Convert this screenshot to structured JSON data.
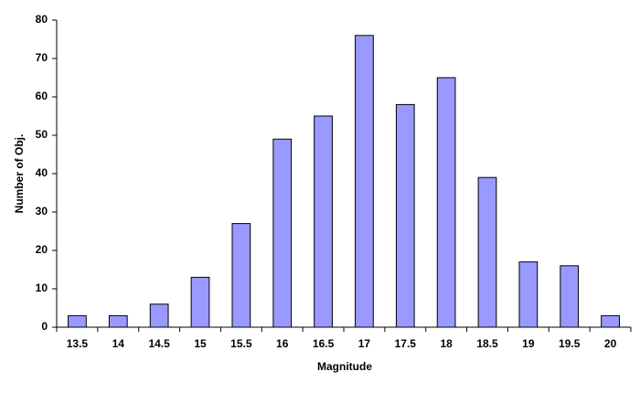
{
  "chart_data": {
    "type": "bar",
    "x_label": "Magnitude",
    "y_label": "Number of Obj.",
    "categories": [
      "13.5",
      "14",
      "14.5",
      "15",
      "15.5",
      "16",
      "16.5",
      "17",
      "17.5",
      "18",
      "18.5",
      "19",
      "19.5",
      "20"
    ],
    "values": [
      3,
      3,
      6,
      13,
      27,
      49,
      55,
      76,
      58,
      65,
      39,
      17,
      16,
      3
    ],
    "color": "#9999ff",
    "ylim": [
      0,
      80
    ],
    "yticks": [
      0,
      10,
      20,
      30,
      40,
      50,
      60,
      70,
      80
    ],
    "grid": false
  }
}
